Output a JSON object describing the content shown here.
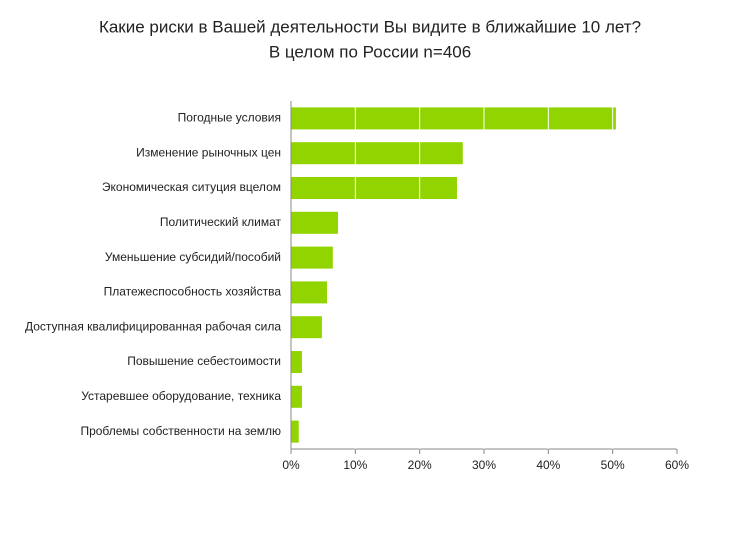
{
  "chart_data": {
    "type": "hbar",
    "title": "Какие риски в Вашей деятельности Вы видите в ближайшие 10 лет?",
    "subtitle": "В целом по России n=406",
    "categories": [
      "Погодные условия",
      "Изменение рыночных цен",
      "Экономическая ситуция вцелом",
      "Политический климат",
      "Уменьшение субсидий/пособий",
      "Платежеспособность хозяйства",
      "Доступная квалифицированная рабочая сила",
      "Повышение себестоимости",
      "Устаревшее оборудование, техника",
      "Проблемы собственности на землю"
    ],
    "values": [
      50.5,
      26.7,
      25.8,
      7.3,
      6.5,
      5.6,
      4.8,
      1.7,
      1.7,
      1.2
    ],
    "color": "#92d400",
    "xlim": [
      0,
      60
    ],
    "xticks": [
      {
        "value": 0,
        "label": "0%"
      },
      {
        "value": 10,
        "label": "10%"
      },
      {
        "value": 20,
        "label": "20%"
      },
      {
        "value": 30,
        "label": "30%"
      },
      {
        "value": 40,
        "label": "40%"
      },
      {
        "value": 50,
        "label": "50%"
      },
      {
        "value": 60,
        "label": "60%"
      }
    ],
    "grid": true
  }
}
